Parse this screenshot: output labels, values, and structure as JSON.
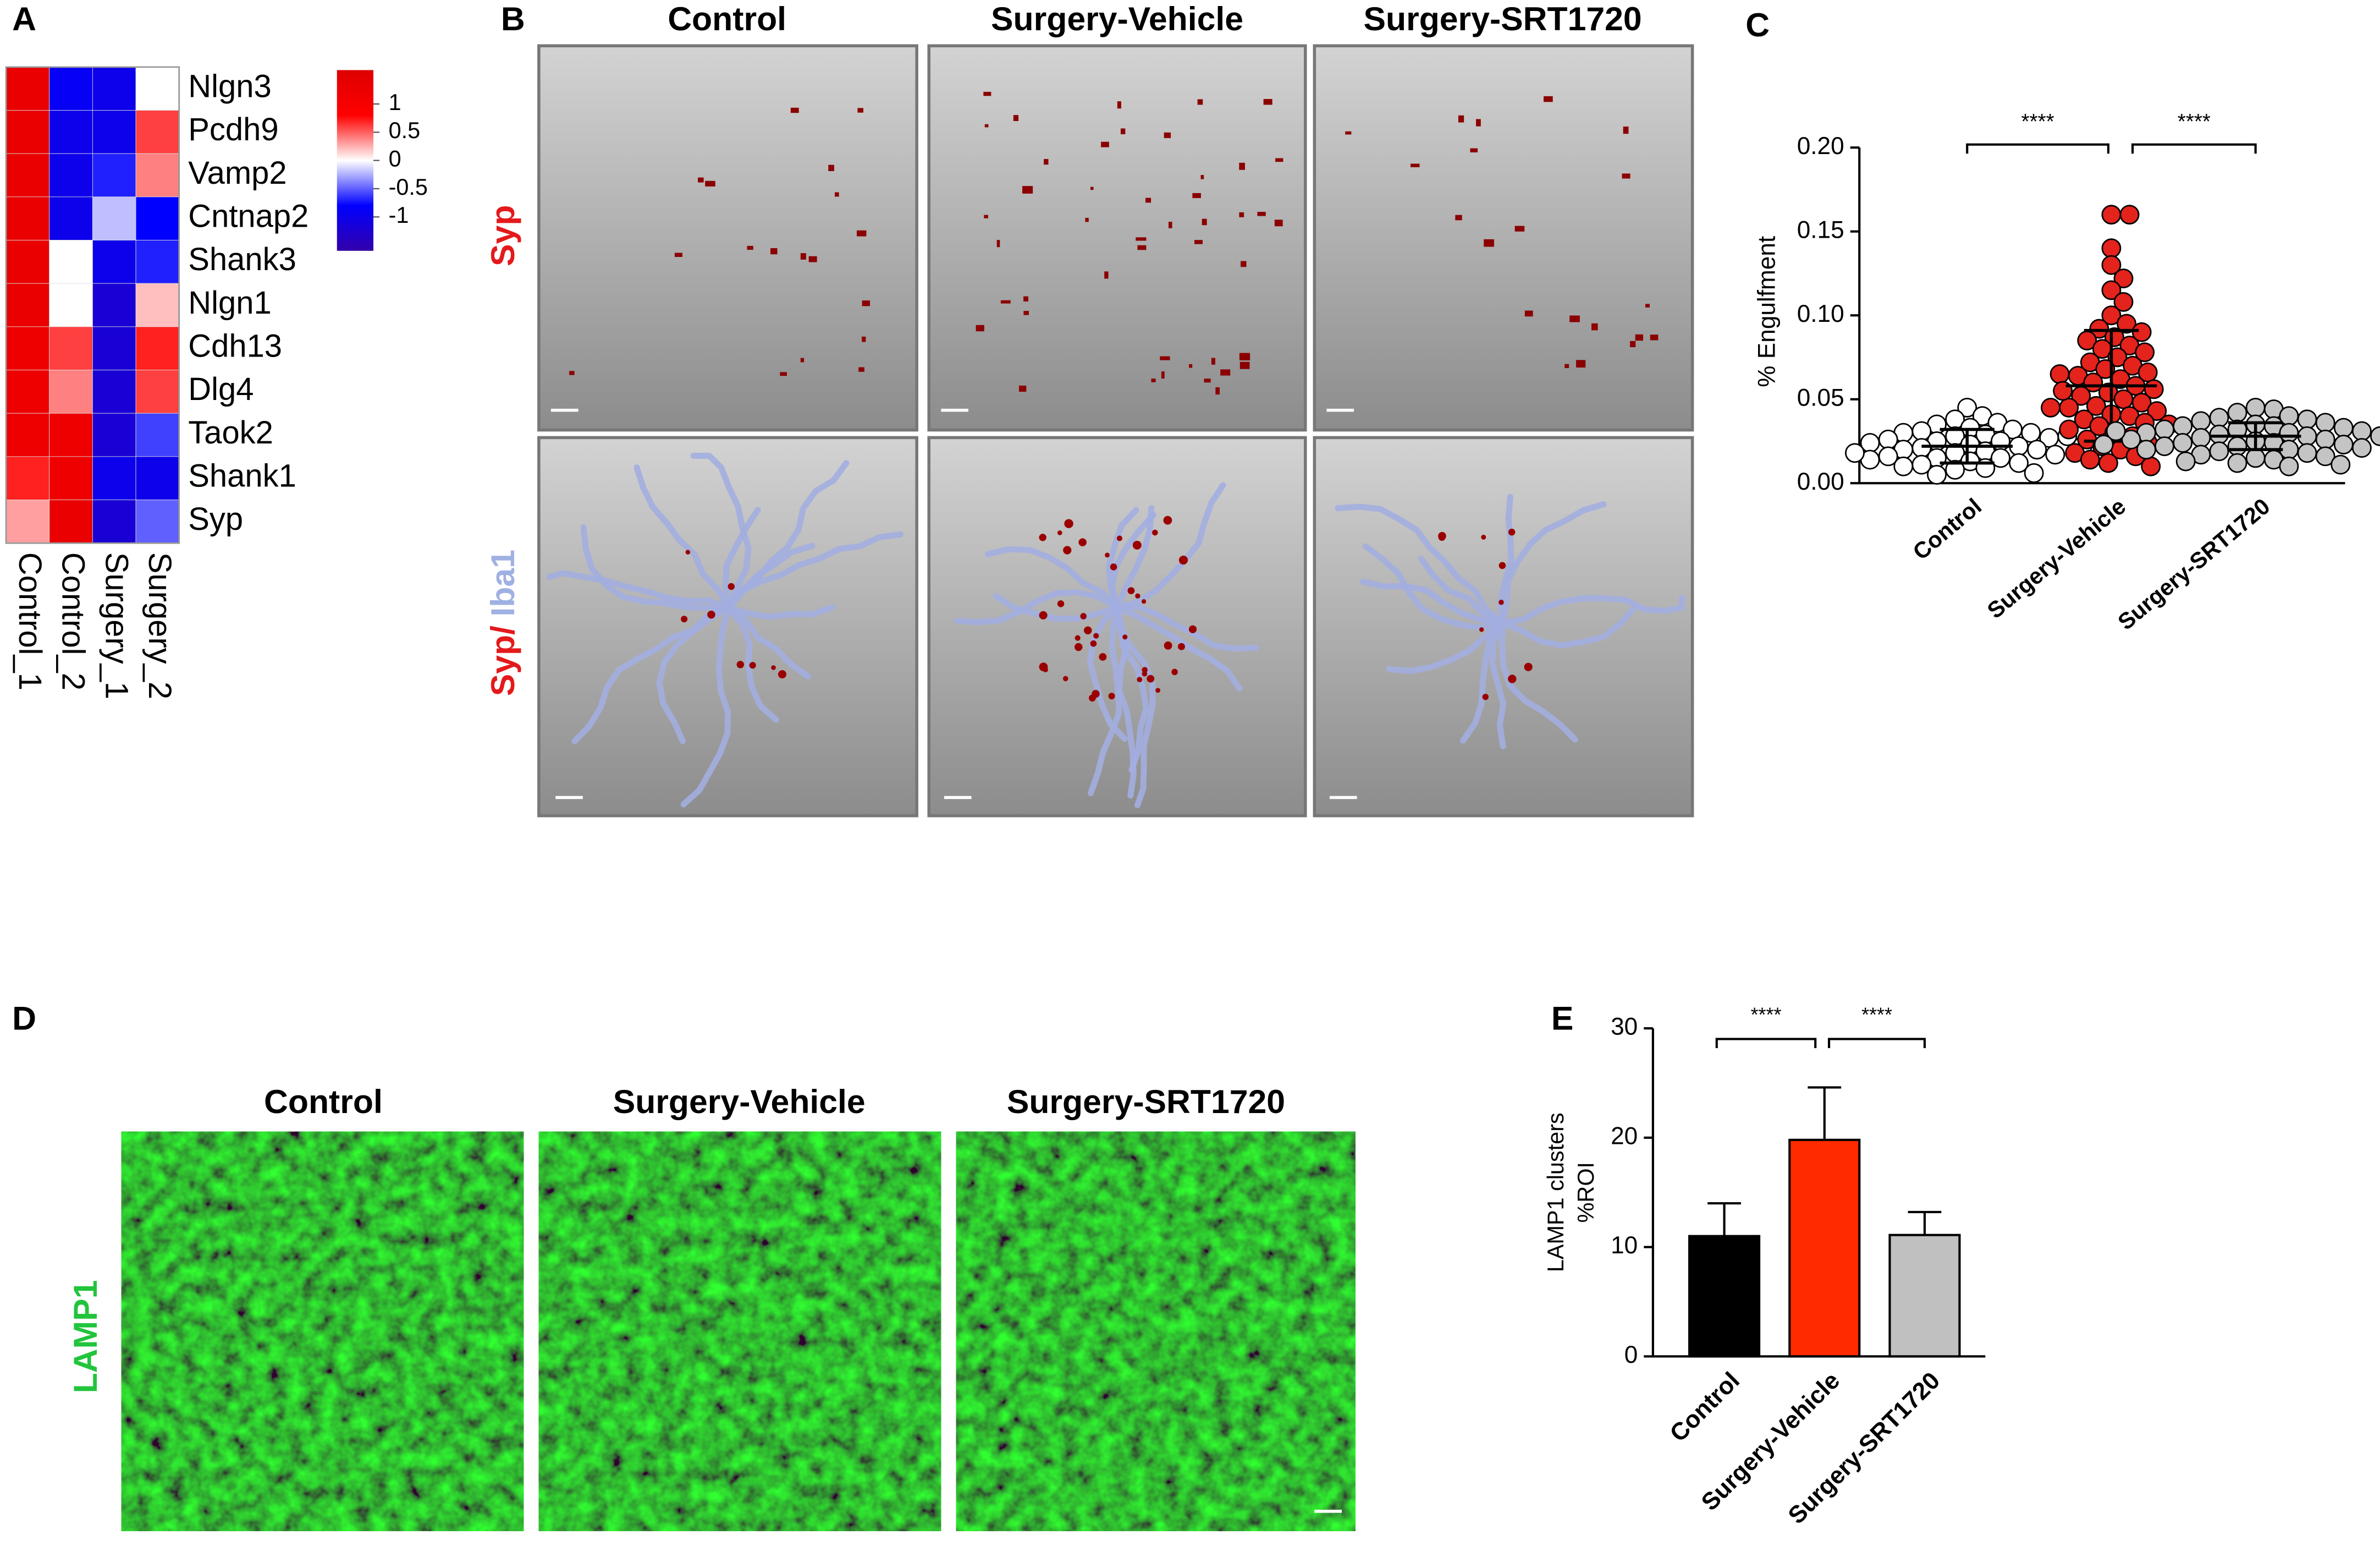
{
  "panel_labels": [
    "A",
    "B",
    "C",
    "D",
    "E"
  ],
  "image_panels": [
    {
      "columns": [
        "Control",
        "Surgery-Vehicle",
        "Surgery-SRT1720"
      ],
      "rows": [
        [
          {
            "text": "Syp",
            "color": "#e3191c"
          }
        ],
        [
          {
            "text": "Syp/",
            "color": "#e3191c"
          },
          {
            "text": "Iba1",
            "color": "#9fb0e2"
          }
        ]
      ]
    },
    {
      "columns": [
        "Control",
        "Surgery-Vehicle",
        "Surgery-SRT1720"
      ],
      "rows": [
        [
          {
            "text": "LAMP1",
            "color": "#22c43c"
          }
        ]
      ]
    }
  ],
  "chart_data": [
    {
      "type": "heatmap",
      "x": [
        "Control_1",
        "Control_2",
        "Surgery_1",
        "Surgery_2"
      ],
      "y": [
        "Nlgn3",
        "Pcdh9",
        "Vamp2",
        "Cntnap2",
        "Shank3",
        "Nlgn1",
        "Cdh13",
        "Dlg4",
        "Taok2",
        "Shank1",
        "Syp"
      ],
      "values": [
        [
          1.3,
          -0.9,
          -1.0,
          0.0
        ],
        [
          1.3,
          -1.0,
          -1.0,
          0.6
        ],
        [
          1.3,
          -1.0,
          -0.7,
          0.4
        ],
        [
          1.3,
          -1.0,
          -0.2,
          -0.8
        ],
        [
          1.3,
          0.0,
          -1.0,
          -0.7
        ],
        [
          1.3,
          0.0,
          -1.2,
          0.2
        ],
        [
          1.2,
          0.6,
          -1.2,
          0.7
        ],
        [
          1.2,
          0.4,
          -1.2,
          0.6
        ],
        [
          1.2,
          1.2,
          -1.2,
          -0.6
        ],
        [
          0.7,
          1.2,
          -1.0,
          -1.0
        ],
        [
          0.3,
          1.3,
          -1.2,
          -0.5
        ]
      ],
      "zlim": [
        -1.6,
        1.6
      ],
      "colorbar_ticks": [
        1,
        0.5,
        0,
        -0.5,
        -1
      ],
      "colors": [
        "#3300aa",
        "#0000ff",
        "#ffffff",
        "#ff0000",
        "#dd0000"
      ]
    },
    {
      "type": "dot",
      "ylabel": "% Engulfment",
      "categories": [
        "Control",
        "Surgery-Vehicle",
        "Surgery-SRT1720"
      ],
      "groups": [
        {
          "color": "#ffffff",
          "mean": 0.022,
          "error": 0.01,
          "values": [
            0.045,
            0.04,
            0.038,
            0.036,
            0.035,
            0.033,
            0.032,
            0.031,
            0.03,
            0.03,
            0.029,
            0.028,
            0.027,
            0.026,
            0.025,
            0.025,
            0.024,
            0.023,
            0.022,
            0.021,
            0.02,
            0.02,
            0.019,
            0.018,
            0.017,
            0.016,
            0.015,
            0.015,
            0.014,
            0.013,
            0.012,
            0.011,
            0.01,
            0.009,
            0.008,
            0.006,
            0.005,
            0.028,
            0.022,
            0.018
          ]
        },
        {
          "color": "#e3231c",
          "mean": 0.058,
          "error": 0.033,
          "values": [
            0.16,
            0.16,
            0.14,
            0.13,
            0.122,
            0.115,
            0.108,
            0.1,
            0.095,
            0.092,
            0.09,
            0.087,
            0.085,
            0.082,
            0.08,
            0.078,
            0.075,
            0.072,
            0.07,
            0.068,
            0.066,
            0.064,
            0.062,
            0.06,
            0.058,
            0.056,
            0.054,
            0.052,
            0.05,
            0.048,
            0.046,
            0.045,
            0.043,
            0.041,
            0.04,
            0.038,
            0.036,
            0.034,
            0.032,
            0.03,
            0.028,
            0.026,
            0.024,
            0.022,
            0.02,
            0.018,
            0.016,
            0.014,
            0.012,
            0.01,
            0.065,
            0.055,
            0.045,
            0.035
          ]
        },
        {
          "color": "#c4c4c4",
          "mean": 0.028,
          "error": 0.008,
          "values": [
            0.045,
            0.044,
            0.042,
            0.04,
            0.039,
            0.038,
            0.037,
            0.036,
            0.035,
            0.034,
            0.034,
            0.033,
            0.032,
            0.032,
            0.031,
            0.03,
            0.03,
            0.029,
            0.028,
            0.028,
            0.027,
            0.026,
            0.026,
            0.025,
            0.024,
            0.024,
            0.023,
            0.022,
            0.022,
            0.021,
            0.02,
            0.02,
            0.019,
            0.018,
            0.017,
            0.016,
            0.015,
            0.014,
            0.013,
            0.012,
            0.011,
            0.01,
            0.031,
            0.027,
            0.023
          ]
        }
      ],
      "ylim": [
        0,
        0.2
      ],
      "yticks": [
        {
          "value": 0,
          "label": "0.00"
        },
        {
          "value": 0.05,
          "label": "0.05"
        },
        {
          "value": 0.1,
          "label": "0.10"
        },
        {
          "value": 0.15,
          "label": "0.15"
        },
        {
          "value": 0.2,
          "label": "0.20"
        }
      ],
      "annotations": [
        "****",
        "****"
      ]
    },
    {
      "type": "bar",
      "ylabel": [
        "LAMP1 clusters",
        "%ROI"
      ],
      "categories": [
        "Control",
        "Surgery-Vehicle",
        "Surgery-SRT1720"
      ],
      "values": [
        11,
        19.8,
        11.1
      ],
      "errors": [
        3,
        4.8,
        2.1
      ],
      "colors": [
        "#000000",
        "#ff2a00",
        "#c0c0c0"
      ],
      "ylim": [
        0,
        30
      ],
      "yticks": [
        0,
        10,
        20,
        30
      ],
      "annotations": [
        "****",
        "****"
      ]
    }
  ]
}
